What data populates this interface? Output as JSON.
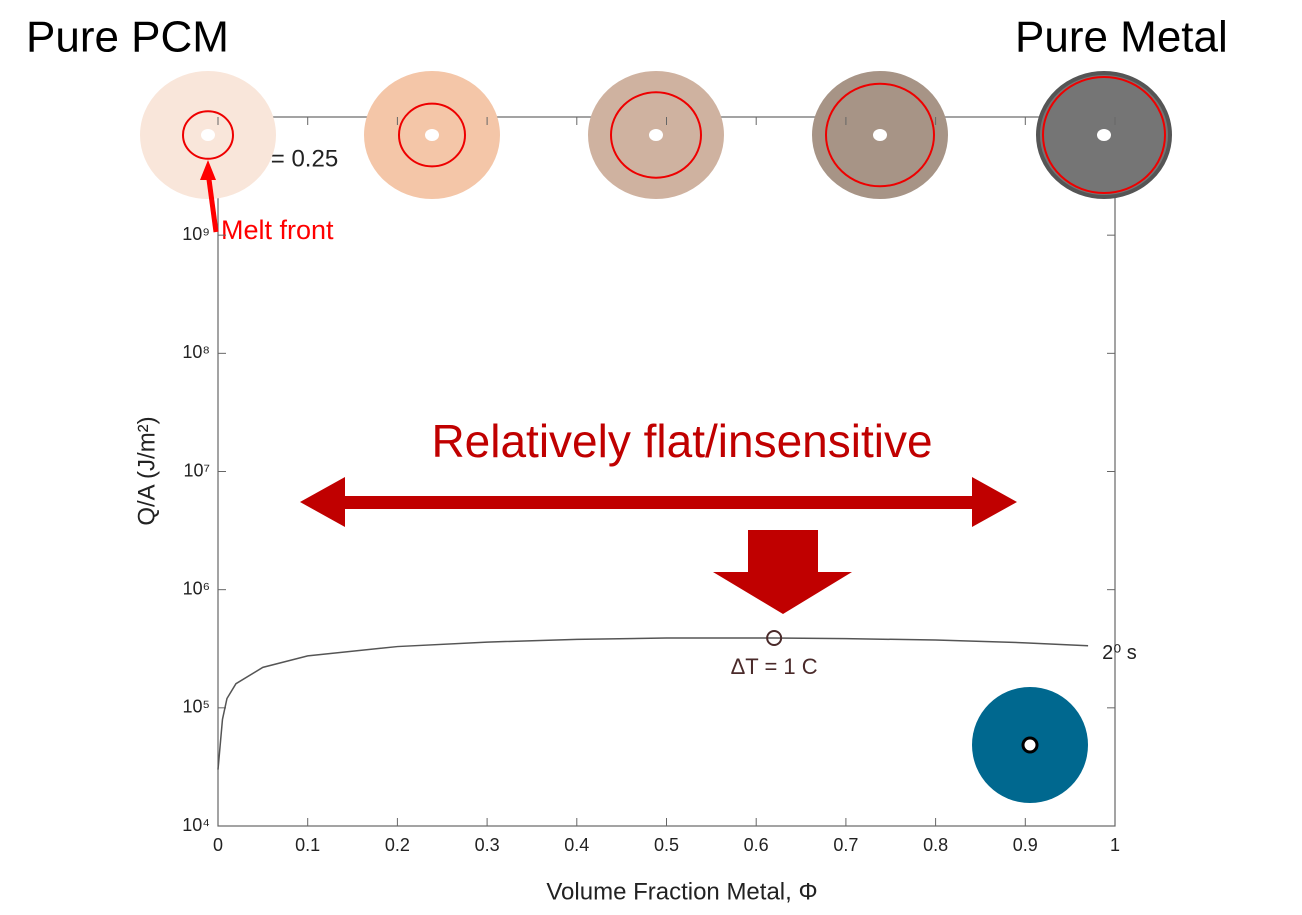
{
  "chart_data": {
    "type": "line",
    "x_label": "Volume Fraction Metal, Φ",
    "y_label": "Q/A (J/m²)",
    "log_y": true,
    "xlim": [
      0,
      1
    ],
    "ylim": [
      10000,
      10000000000
    ],
    "xticks": [
      0,
      0.1,
      0.2,
      0.3,
      0.4,
      0.5,
      0.6,
      0.7,
      0.8,
      0.9,
      1
    ],
    "yticks": [
      {
        "value": 10000,
        "label": "10⁴"
      },
      {
        "value": 100000,
        "label": "10⁵"
      },
      {
        "value": 1000000,
        "label": "10⁶"
      },
      {
        "value": 10000000,
        "label": "10⁷"
      },
      {
        "value": 100000000,
        "label": "10⁸"
      },
      {
        "value": 1000000000,
        "label": "10⁹"
      }
    ],
    "series": [
      {
        "name": "2⁰ s",
        "color": "#555555",
        "x": [
          0,
          0.005,
          0.01,
          0.02,
          0.05,
          0.1,
          0.2,
          0.3,
          0.4,
          0.5,
          0.62,
          0.7,
          0.8,
          0.9,
          0.97
        ],
        "values": [
          30000,
          80000,
          120000,
          160000,
          220000,
          275000,
          330000,
          360000,
          380000,
          390000,
          390000,
          385000,
          375000,
          355000,
          335000
        ]
      }
    ],
    "marker": {
      "x": 0.62,
      "y": 390000,
      "label": "ΔT = 1 C"
    },
    "annotations": {
      "flat": "Relatively flat/insensitive",
      "pcm": "Pure PCM",
      "metal": "Pure Metal",
      "melt": "Melt front",
      "phi0": "Φ₀ = 0.25"
    }
  }
}
